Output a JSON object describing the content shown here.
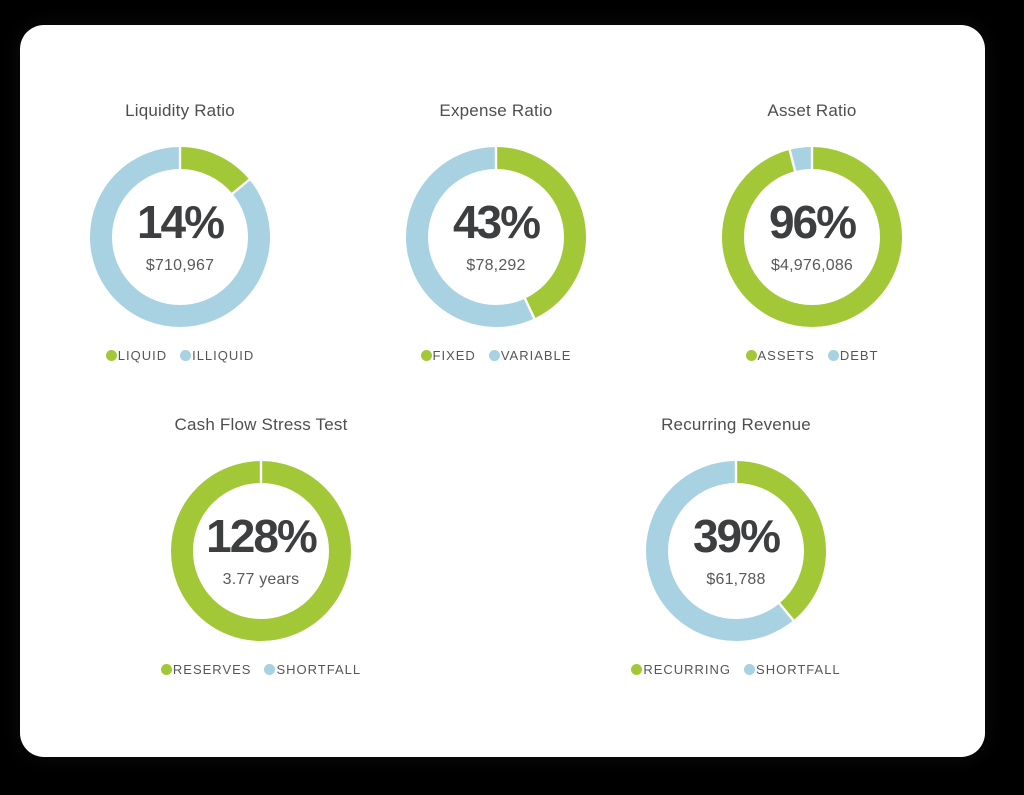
{
  "page": {
    "background": "#000000",
    "card_background": "#ffffff"
  },
  "colors": {
    "green": "#a2c838",
    "blue": "#a8d1e1",
    "title_text": "#4d4e50",
    "percent_text": "#3d3e40",
    "subtext": "#58595b",
    "legend_text": "#55565a"
  },
  "chart_data": [
    {
      "type": "donut",
      "title": "Liquidity Ratio",
      "percent": 14,
      "percent_label": "14%",
      "center_subtext": "$710,967",
      "series": [
        {
          "name": "LIQUID",
          "color": "#a2c838",
          "value_percent": 14
        },
        {
          "name": "ILLIQUID",
          "color": "#a8d1e1",
          "value_percent": 86
        }
      ],
      "legend_position": "bottom"
    },
    {
      "type": "donut",
      "title": "Expense Ratio",
      "percent": 43,
      "percent_label": "43%",
      "center_subtext": "$78,292",
      "series": [
        {
          "name": "FIXED",
          "color": "#a2c838",
          "value_percent": 43
        },
        {
          "name": "VARIABLE",
          "color": "#a8d1e1",
          "value_percent": 57
        }
      ],
      "legend_position": "bottom"
    },
    {
      "type": "donut",
      "title": "Asset Ratio",
      "percent": 96,
      "percent_label": "96%",
      "center_subtext": "$4,976,086",
      "series": [
        {
          "name": "ASSETS",
          "color": "#a2c838",
          "value_percent": 96
        },
        {
          "name": "DEBT",
          "color": "#a8d1e1",
          "value_percent": 4
        }
      ],
      "legend_position": "bottom"
    },
    {
      "type": "donut",
      "title": "Cash Flow Stress Test",
      "percent": 128,
      "percent_label": "128%",
      "center_subtext": "3.77 years",
      "series": [
        {
          "name": "RESERVES",
          "color": "#a2c838",
          "value_percent": 128
        },
        {
          "name": "SHORTFALL",
          "color": "#a8d1e1",
          "value_percent": 0
        }
      ],
      "legend_position": "bottom"
    },
    {
      "type": "donut",
      "title": "Recurring Revenue",
      "percent": 39,
      "percent_label": "39%",
      "center_subtext": "$61,788",
      "series": [
        {
          "name": "RECURRING",
          "color": "#a2c838",
          "value_percent": 39
        },
        {
          "name": "SHORTFALL",
          "color": "#a8d1e1",
          "value_percent": 61
        }
      ],
      "legend_position": "bottom"
    }
  ]
}
